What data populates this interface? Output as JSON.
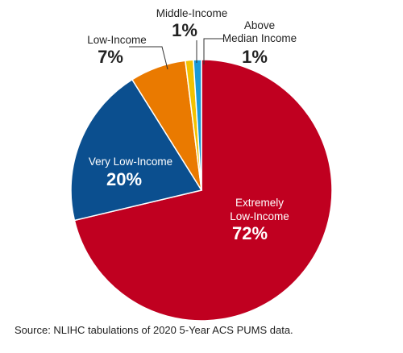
{
  "chart_data": {
    "type": "pie",
    "slices": [
      {
        "name_lines": [
          "Extremely",
          "Low-Income"
        ],
        "pct_label": "72%",
        "value": 72,
        "color": "#c00020",
        "label_color": "#ffffff",
        "label_style": "inside"
      },
      {
        "name_lines": [
          "Very Low-Income"
        ],
        "pct_label": "20%",
        "value": 20,
        "color": "#0b4f8f",
        "label_color": "#ffffff",
        "label_style": "inside"
      },
      {
        "name_lines": [
          "Low-Income"
        ],
        "pct_label": "7%",
        "value": 7,
        "color": "#ea7a00",
        "label_color": "#222222",
        "label_style": "outside"
      },
      {
        "name_lines": [
          "Middle-Income"
        ],
        "pct_label": "1%",
        "value": 1,
        "color": "#f2c200",
        "label_color": "#222222",
        "label_style": "outside"
      },
      {
        "name_lines": [
          "Above",
          "Median Income"
        ],
        "pct_label": "1%",
        "value": 1,
        "color": "#1a9bd7",
        "label_color": "#222222",
        "label_style": "outside"
      }
    ]
  },
  "source": "Source: NLIHC tabulations of 2020 5-Year ACS PUMS data."
}
